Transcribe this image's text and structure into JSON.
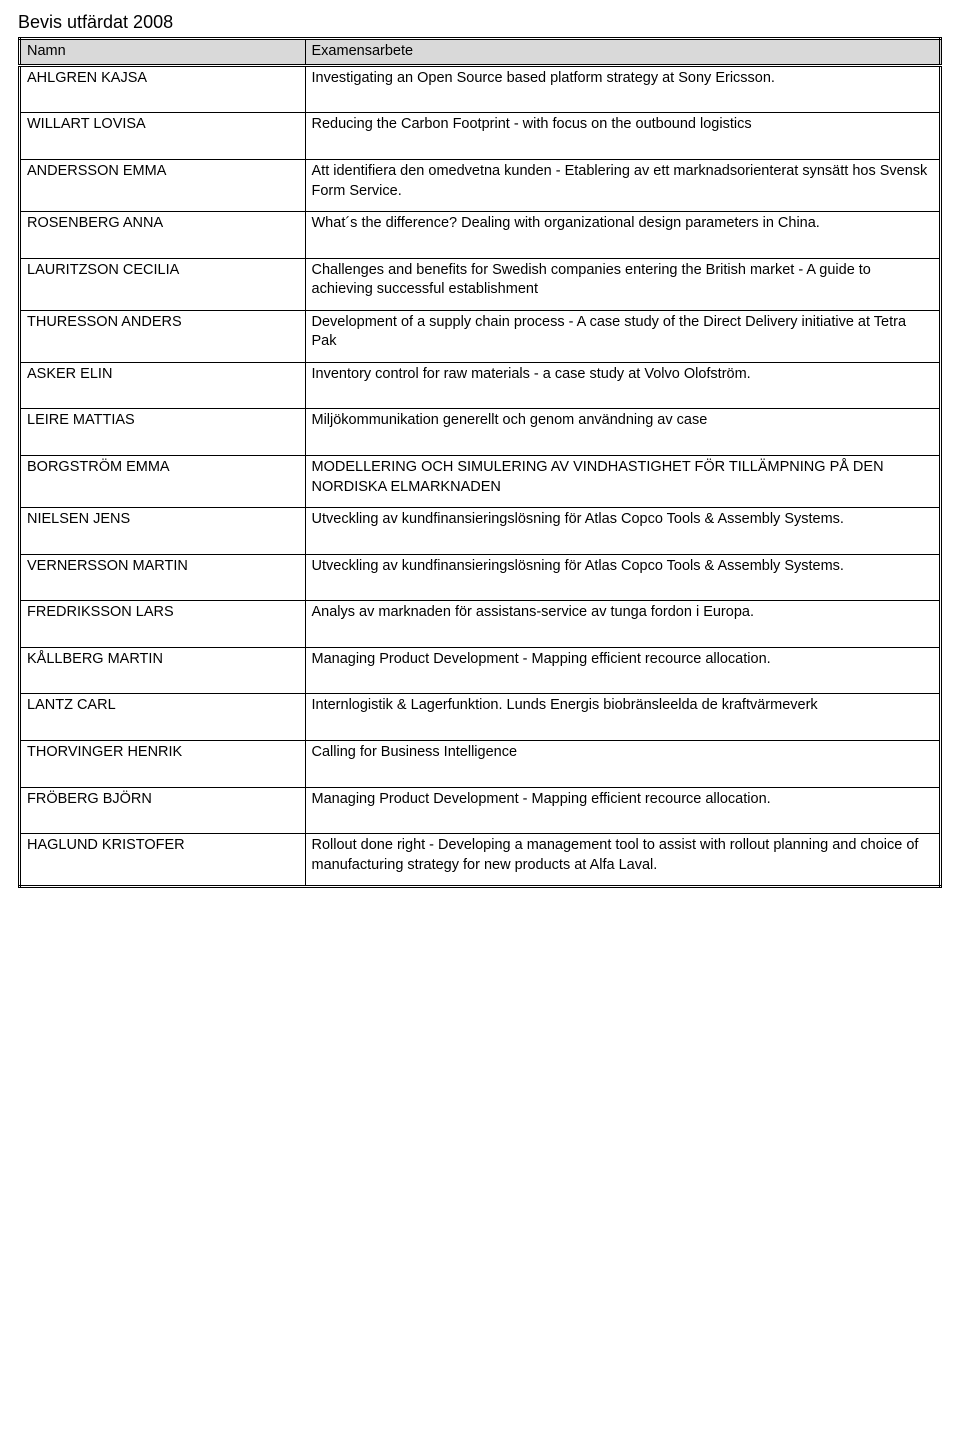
{
  "document": {
    "title": "Bevis utfärdat 2008",
    "columns": [
      "Namn",
      "Examensarbete"
    ],
    "column_widths_pct": [
      31,
      69
    ],
    "header_bg": "#d9d9d9",
    "font_family": "Arial",
    "font_size_pt": 11,
    "title_font_size_pt": 13,
    "border_color": "#000000",
    "background_color": "#ffffff",
    "rows": [
      {
        "name": "AHLGREN KAJSA",
        "desc": "Investigating an Open Source based platform strategy at Sony Ericsson."
      },
      {
        "name": "WILLART LOVISA",
        "desc": "Reducing the Carbon Footprint - with focus on the outbound logistics"
      },
      {
        "name": "ANDERSSON EMMA",
        "desc": "Att identifiera den omedvetna kunden - Etablering av ett marknadsorienterat synsätt hos Svensk Form Service."
      },
      {
        "name": "ROSENBERG ANNA",
        "desc": "What´s the difference? Dealing with organizational design parameters in China."
      },
      {
        "name": "LAURITZSON CECILIA",
        "desc": "Challenges and benefits for Swedish companies entering the British market - A guide to achieving successful establishment"
      },
      {
        "name": "THURESSON ANDERS",
        "desc": "Development of a supply chain process - A case study of the Direct Delivery initiative at Tetra Pak"
      },
      {
        "name": "ASKER ELIN",
        "desc": "Inventory control for raw materials - a case study at Volvo Olofström."
      },
      {
        "name": "LEIRE MATTIAS",
        "desc": "Miljökommunikation generellt och genom användning av case"
      },
      {
        "name": "BORGSTRÖM EMMA",
        "desc": "MODELLERING OCH SIMULERING AV VINDHASTIGHET FÖR TILLÄMPNING PÅ DEN NORDISKA ELMARKNADEN"
      },
      {
        "name": "NIELSEN JENS",
        "desc": "Utveckling av kundfinansieringslösning för Atlas Copco Tools & Assembly Systems."
      },
      {
        "name": "VERNERSSON MARTIN",
        "desc": "Utveckling av kundfinansieringslösning för Atlas Copco Tools & Assembly Systems."
      },
      {
        "name": "FREDRIKSSON LARS",
        "desc": "Analys av marknaden för assistans-service av tunga fordon i Europa."
      },
      {
        "name": "KÅLLBERG MARTIN",
        "desc": "Managing Product Development - Mapping efficient recource allocation."
      },
      {
        "name": "LANTZ CARL",
        "desc": "Internlogistik & Lagerfunktion. Lunds Energis biobränsleelda de kraftvärmeverk"
      },
      {
        "name": "THORVINGER HENRIK",
        "desc": "Calling for Business Intelligence"
      },
      {
        "name": "FRÖBERG BJÖRN",
        "desc": "Managing Product Development - Mapping efficient recource allocation."
      },
      {
        "name": "HAGLUND KRISTOFER",
        "desc": "Rollout done right -  Developing a management tool to assist with rollout planning and choice of manufacturing strategy for new products at Alfa Laval."
      }
    ]
  }
}
